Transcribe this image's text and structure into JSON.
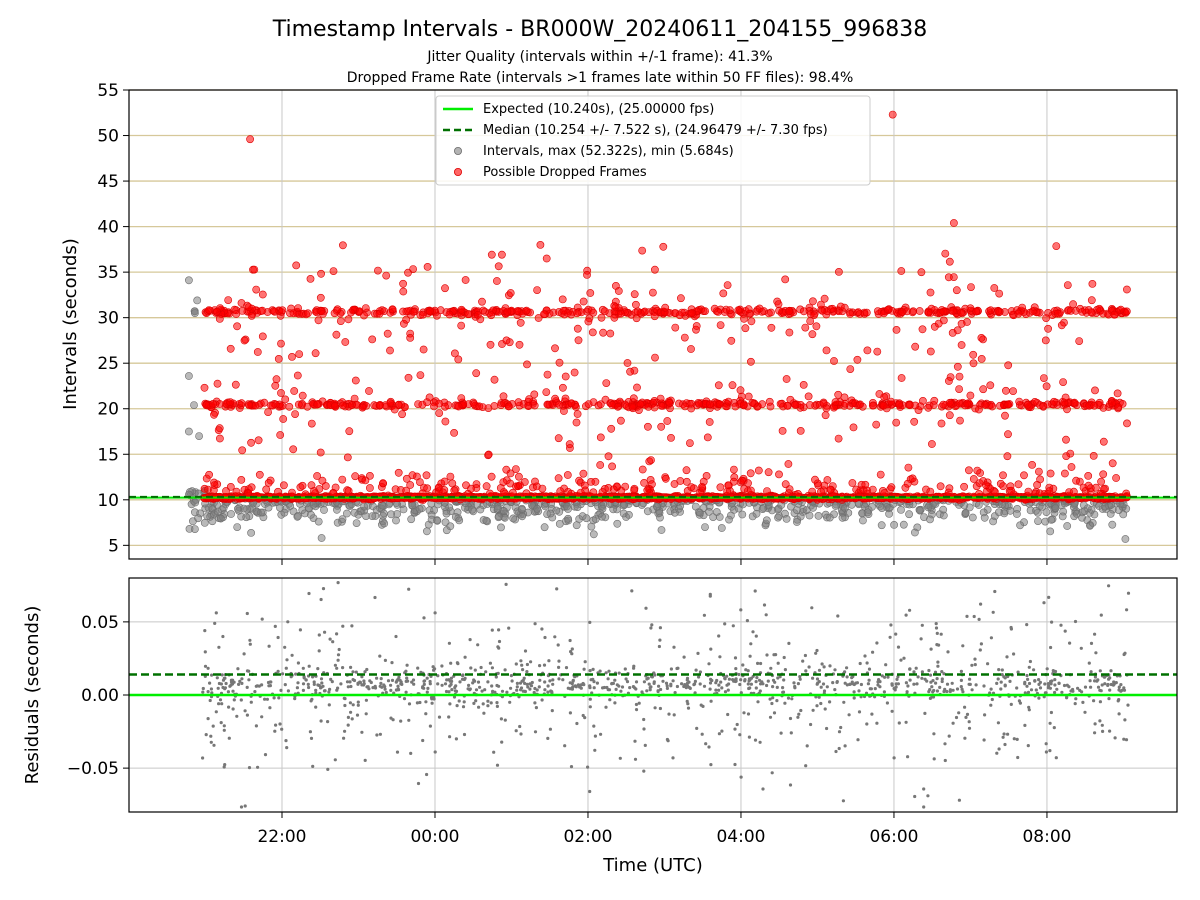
{
  "chart_data": {
    "type": "scatter",
    "title": "Timestamp Intervals - BR000W_20240611_204155_996838",
    "subtitle_1": "Jitter Quality (intervals within +/-1 frame): 41.3%",
    "subtitle_2": "Dropped Frame Rate (intervals >1 frames late within 50 FF files): 98.4%",
    "xlabel": "Time (UTC)",
    "x_ticks": [
      "22:00",
      "00:00",
      "02:00",
      "04:00",
      "06:00",
      "08:00"
    ],
    "x_range_hours": [
      20.0,
      33.7
    ],
    "top_panel": {
      "ylabel": "Intervals (seconds)",
      "ylim": [
        3.5,
        55
      ],
      "y_ticks": [
        5,
        10,
        15,
        20,
        25,
        30,
        35,
        40,
        45,
        50,
        55
      ],
      "expected_value": 10.24,
      "median_value": 10.254,
      "legend_placement": "upper-center",
      "legend": {
        "expected": "Expected (10.240s), (25.00000 fps)",
        "median": "Median (10.254 +/- 7.522 s), (24.96479 +/- 7.30 fps)",
        "intervals": "Intervals, max (52.322s), min (5.684s)",
        "dropped": "Possible Dropped Frames"
      },
      "clusters_seconds": [
        10.25,
        20.5,
        30.7
      ],
      "dropped_outliers": [
        {
          "time": "21:35",
          "value": 49.6
        },
        {
          "time": "05:59",
          "value": 52.3
        },
        {
          "time": "06:47",
          "value": 40.4
        }
      ],
      "gray_outliers": [
        {
          "time": "20:47",
          "value": 34.1
        },
        {
          "time": "20:47",
          "value": 23.6
        },
        {
          "time": "20:47",
          "value": 17.5
        },
        {
          "time": "20:55",
          "value": 17.0
        },
        {
          "time": "20:51",
          "value": 20.4
        }
      ]
    },
    "bottom_panel": {
      "ylabel": "Residuals (seconds)",
      "ylim": [
        -0.08,
        0.08
      ],
      "y_ticks": [
        {
          "value": 0.05,
          "label": "0.05"
        },
        {
          "value": 0.0,
          "label": "0.00"
        },
        {
          "value": -0.05,
          "label": "−0.05"
        }
      ],
      "expected_line": 0.0,
      "median_line": 0.014
    },
    "colors": {
      "expected": "#00ee00",
      "median": "#007000",
      "intervals": "#808080",
      "dropped": "#ff0000",
      "top_grid": "#d6c89a",
      "grid": "#c8c8c8"
    },
    "grid": true
  }
}
